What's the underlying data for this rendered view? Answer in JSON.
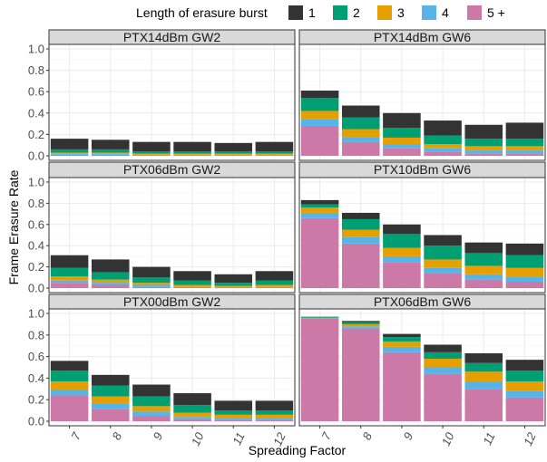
{
  "chart_data": {
    "type": "bar",
    "stacked": true,
    "xlabel": "Spreading Factor",
    "ylabel": "Frame Erasure Rate",
    "ylim": [
      0,
      1.0
    ],
    "yticks": [
      "0.0",
      "0.2",
      "0.4",
      "0.6",
      "0.8",
      "1.0"
    ],
    "categories": [
      "7",
      "8",
      "9",
      "10",
      "11",
      "12"
    ],
    "grid": true,
    "legend": {
      "title": "Length of erasure burst",
      "position": "top",
      "entries": [
        "1",
        "2",
        "3",
        "4",
        "5 +"
      ]
    },
    "colors": {
      "1": "#333333",
      "2": "#009e73",
      "3": "#e69f00",
      "4": "#56b4e9",
      "5 +": "#cc79a7"
    },
    "panels": [
      {
        "title": "PTX14dBm GW2",
        "series": [
          {
            "name": "5 +",
            "values": [
              0.01,
              0.01,
              0.0,
              0.0,
              0.0,
              0.0
            ]
          },
          {
            "name": "4",
            "values": [
              0.01,
              0.01,
              0.01,
              0.01,
              0.01,
              0.01
            ]
          },
          {
            "name": "3",
            "values": [
              0.01,
              0.01,
              0.01,
              0.01,
              0.01,
              0.01
            ]
          },
          {
            "name": "2",
            "values": [
              0.03,
              0.03,
              0.02,
              0.02,
              0.02,
              0.02
            ]
          },
          {
            "name": "1",
            "values": [
              0.1,
              0.09,
              0.09,
              0.09,
              0.08,
              0.09
            ]
          }
        ]
      },
      {
        "title": "PTX14dBm GW6",
        "series": [
          {
            "name": "5 +",
            "values": [
              0.28,
              0.13,
              0.07,
              0.04,
              0.02,
              0.02
            ]
          },
          {
            "name": "4",
            "values": [
              0.06,
              0.04,
              0.04,
              0.03,
              0.03,
              0.03
            ]
          },
          {
            "name": "3",
            "values": [
              0.08,
              0.08,
              0.06,
              0.04,
              0.04,
              0.04
            ]
          },
          {
            "name": "2",
            "values": [
              0.12,
              0.11,
              0.09,
              0.08,
              0.07,
              0.07
            ]
          },
          {
            "name": "1",
            "values": [
              0.07,
              0.11,
              0.14,
              0.14,
              0.13,
              0.15
            ]
          }
        ]
      },
      {
        "title": "PTX06dBm GW2",
        "series": [
          {
            "name": "5 +",
            "values": [
              0.05,
              0.03,
              0.01,
              0.0,
              0.0,
              0.0
            ]
          },
          {
            "name": "4",
            "values": [
              0.02,
              0.02,
              0.02,
              0.01,
              0.01,
              0.01
            ]
          },
          {
            "name": "3",
            "values": [
              0.04,
              0.03,
              0.02,
              0.02,
              0.01,
              0.02
            ]
          },
          {
            "name": "2",
            "values": [
              0.08,
              0.07,
              0.05,
              0.04,
              0.03,
              0.04
            ]
          },
          {
            "name": "1",
            "values": [
              0.12,
              0.12,
              0.1,
              0.09,
              0.08,
              0.09
            ]
          }
        ]
      },
      {
        "title": "PTX10dBm GW6",
        "series": [
          {
            "name": "5 +",
            "values": [
              0.66,
              0.42,
              0.24,
              0.14,
              0.08,
              0.06
            ]
          },
          {
            "name": "4",
            "values": [
              0.05,
              0.06,
              0.06,
              0.05,
              0.05,
              0.05
            ]
          },
          {
            "name": "3",
            "values": [
              0.05,
              0.07,
              0.08,
              0.08,
              0.08,
              0.08
            ]
          },
          {
            "name": "2",
            "values": [
              0.03,
              0.1,
              0.13,
              0.13,
              0.12,
              0.12
            ]
          },
          {
            "name": "1",
            "values": [
              0.04,
              0.06,
              0.09,
              0.1,
              0.1,
              0.11
            ]
          }
        ]
      },
      {
        "title": "PTX00dBm GW2",
        "series": [
          {
            "name": "5 +",
            "values": [
              0.24,
              0.11,
              0.05,
              0.02,
              0.01,
              0.01
            ]
          },
          {
            "name": "4",
            "values": [
              0.05,
              0.05,
              0.04,
              0.02,
              0.02,
              0.02
            ]
          },
          {
            "name": "3",
            "values": [
              0.08,
              0.07,
              0.05,
              0.04,
              0.03,
              0.03
            ]
          },
          {
            "name": "2",
            "values": [
              0.1,
              0.1,
              0.09,
              0.07,
              0.04,
              0.04
            ]
          },
          {
            "name": "1",
            "values": [
              0.09,
              0.1,
              0.11,
              0.11,
              0.09,
              0.09
            ]
          }
        ]
      },
      {
        "title": "PTX06dBm GW6",
        "series": [
          {
            "name": "5 +",
            "values": [
              0.95,
              0.86,
              0.64,
              0.44,
              0.3,
              0.22
            ]
          },
          {
            "name": "4",
            "values": [
              0.0,
              0.02,
              0.05,
              0.06,
              0.07,
              0.06
            ]
          },
          {
            "name": "3",
            "values": [
              0.01,
              0.02,
              0.05,
              0.08,
              0.09,
              0.09
            ]
          },
          {
            "name": "2",
            "values": [
              0.01,
              0.02,
              0.04,
              0.06,
              0.08,
              0.1
            ]
          },
          {
            "name": "1",
            "values": [
              0.0,
              0.01,
              0.03,
              0.07,
              0.09,
              0.1
            ]
          }
        ]
      }
    ]
  }
}
